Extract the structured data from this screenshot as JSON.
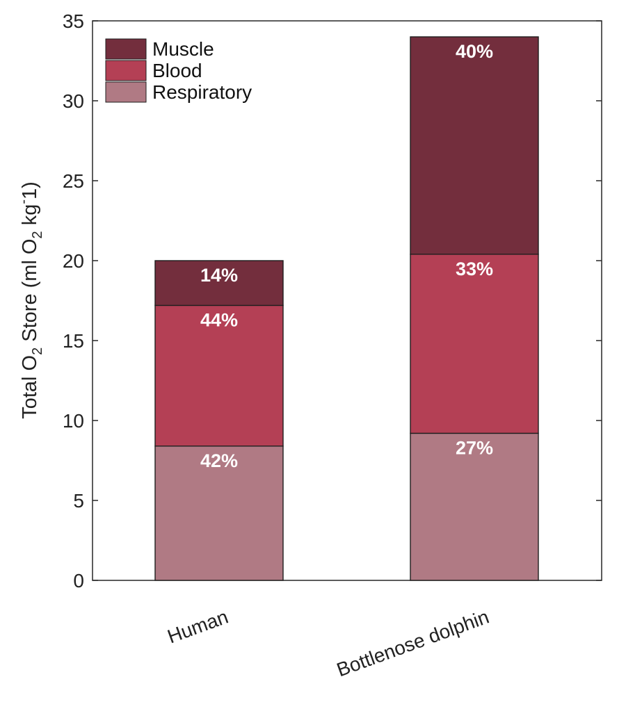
{
  "chart_data": {
    "type": "bar",
    "stacked": true,
    "categories": [
      "Human",
      "Bottlenose dolphin"
    ],
    "series": [
      {
        "name": "Respiratory",
        "values": [
          8.4,
          9.2
        ],
        "labels": [
          "42%",
          "27%"
        ],
        "color": "#b07a84"
      },
      {
        "name": "Blood",
        "values": [
          8.8,
          11.2
        ],
        "labels": [
          "44%",
          "33%"
        ],
        "color": "#b44055"
      },
      {
        "name": "Muscle",
        "values": [
          2.8,
          13.6
        ],
        "labels": [
          "14%",
          "40%"
        ],
        "color": "#732e3d"
      }
    ],
    "legend_order": [
      "Muscle",
      "Blood",
      "Respiratory"
    ],
    "legend_position": "top-left",
    "ylabel": {
      "main": "Total O",
      "sub1": "2",
      "mid": " Store (ml O",
      "sub2": "2",
      "end": " kg",
      "sup": "-",
      "tail": "1)"
    },
    "ylim": [
      0,
      35
    ],
    "yticks": [
      0,
      5,
      10,
      15,
      20,
      25,
      30,
      35
    ],
    "grid": false
  }
}
